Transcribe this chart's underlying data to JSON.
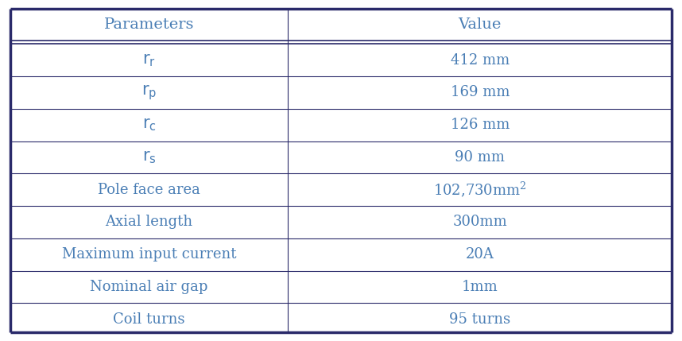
{
  "col_headers": [
    "Parameters",
    "Value"
  ],
  "rows": [
    {
      "param": "r_r",
      "value": "412 mm",
      "param_sub": "r"
    },
    {
      "param": "r_p",
      "value": "169 mm",
      "param_sub": "p"
    },
    {
      "param": "r_c",
      "value": "126 mm",
      "param_sub": "c"
    },
    {
      "param": "r_s",
      "value": "90 mm",
      "param_sub": "s"
    },
    {
      "param": "Pole face area",
      "value_main": "102,730mm",
      "value_super": "2",
      "param_sub": null
    },
    {
      "param": "Axial length",
      "value": "300mm",
      "param_sub": null
    },
    {
      "param": "Maximum input current",
      "value": "20A",
      "param_sub": null
    },
    {
      "param": "Nominal air gap",
      "value": "1mm",
      "param_sub": null
    },
    {
      "param": "Coil turns",
      "value": "95 turns",
      "param_sub": null
    }
  ],
  "text_color": "#4a7eb5",
  "border_color": "#2a2a6a",
  "bg_color": "#ffffff",
  "col_split": 0.42,
  "font_size": 13,
  "header_font_size": 14
}
